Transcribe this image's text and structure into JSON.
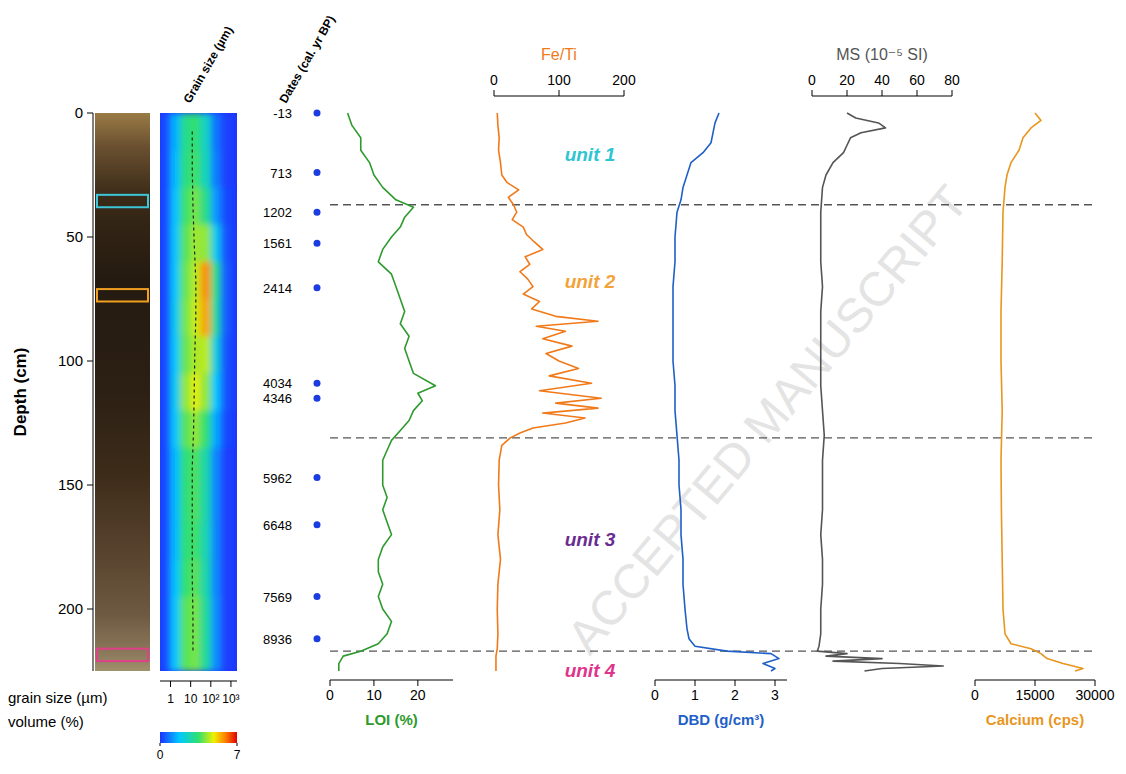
{
  "chart_data": {
    "type": "core_log",
    "ylabel": "Depth (cm)",
    "ylim": [
      0,
      225
    ],
    "yticks": [
      0,
      50,
      100,
      150,
      200
    ],
    "watermark": "ACCEPTED MANUSCRIPT",
    "boundaries": [
      37,
      131,
      217
    ],
    "units": [
      {
        "label": "unit 1",
        "depth": 17,
        "color": "#2ec5d3"
      },
      {
        "label": "unit 2",
        "depth": 68,
        "color": "#f2a33a"
      },
      {
        "label": "unit 3",
        "depth": 172,
        "color": "#6a2c91"
      },
      {
        "label": "unit 4",
        "depth": 225,
        "color": "#e0338a"
      }
    ],
    "core_samples": [
      {
        "top": 33,
        "bottom": 38,
        "color": "#3cc6d8"
      },
      {
        "top": 71,
        "bottom": 76,
        "color": "#f0a020"
      },
      {
        "top": 216,
        "bottom": 221,
        "color": "#e0408a"
      }
    ],
    "grain_size": {
      "title": "Grain size (µm)",
      "axis_label": "grain size (µm)",
      "colorbar_label": "volume (%)",
      "log": "x",
      "xlim": [
        0.3,
        2000
      ],
      "xticks": [
        1,
        10,
        {
          "value": 100,
          "label": "10²"
        },
        {
          "value": 1000,
          "label": "10³"
        }
      ],
      "bin_edges": [
        0.3,
        1,
        3,
        10,
        30,
        100,
        300,
        1000,
        2000
      ],
      "depth_edges": [
        0,
        15,
        30,
        45,
        60,
        75,
        90,
        105,
        120,
        135,
        150,
        165,
        180,
        195,
        210,
        225
      ],
      "cells": [
        [
          0.3,
          1.5,
          3.2,
          3.5,
          2.5,
          0.8,
          0.2,
          0.1
        ],
        [
          0.3,
          1.6,
          3.3,
          3.6,
          2.6,
          0.9,
          0.2,
          0.1
        ],
        [
          0.3,
          1.7,
          3.6,
          4.0,
          3.2,
          1.2,
          0.3,
          0.1
        ],
        [
          0.3,
          1.8,
          3.8,
          4.3,
          4.2,
          2.0,
          0.4,
          0.1
        ],
        [
          0.3,
          1.8,
          3.9,
          4.5,
          5.8,
          3.2,
          0.5,
          0.1
        ],
        [
          0.3,
          1.9,
          4.0,
          4.6,
          5.6,
          3.0,
          0.5,
          0.1
        ],
        [
          0.3,
          1.8,
          3.9,
          4.4,
          4.5,
          2.2,
          0.4,
          0.1
        ],
        [
          0.3,
          1.9,
          4.2,
          4.8,
          4.2,
          1.8,
          0.4,
          0.1
        ],
        [
          0.3,
          1.8,
          3.8,
          4.2,
          3.5,
          1.4,
          0.3,
          0.1
        ],
        [
          0.3,
          1.6,
          3.4,
          3.7,
          2.8,
          1.0,
          0.2,
          0.1
        ],
        [
          0.3,
          1.6,
          3.4,
          3.7,
          2.8,
          1.0,
          0.2,
          0.1
        ],
        [
          0.3,
          1.6,
          3.4,
          3.6,
          2.7,
          1.0,
          0.2,
          0.1
        ],
        [
          0.3,
          1.7,
          3.5,
          3.8,
          2.8,
          1.0,
          0.2,
          0.1
        ],
        [
          0.3,
          1.8,
          3.8,
          4.0,
          3.0,
          1.1,
          0.2,
          0.1
        ],
        [
          0.3,
          1.8,
          3.8,
          4.0,
          3.0,
          1.1,
          0.2,
          0.1
        ]
      ],
      "colorbar_range": [
        0,
        7
      ],
      "colorbar_ticks": [
        0,
        7
      ],
      "median_depth": [
        7.5,
        22.5,
        37.5,
        52.5,
        67.5,
        82.5,
        97.5,
        112.5,
        127.5,
        142.5,
        157.5,
        172.5,
        187.5,
        202.5,
        217.5
      ],
      "median": [
        12,
        12,
        13,
        15,
        18,
        18,
        16,
        15,
        14,
        12,
        12,
        12,
        12,
        13,
        13
      ]
    },
    "dates": {
      "title": "Dates (cal. yr BP)",
      "color": "#1a3ce0",
      "depth": [
        0,
        24,
        40,
        52.5,
        70.5,
        109,
        115,
        147,
        166,
        195,
        212
      ],
      "age": [
        -13,
        713,
        1202,
        1561,
        2414,
        4034,
        4346,
        5962,
        6648,
        7569,
        8936
      ]
    },
    "panels": [
      {
        "name": "LOI",
        "title": "LOI (%)",
        "color": "#2e9a2e",
        "xlim": [
          0,
          28
        ],
        "xticks": [
          0,
          10,
          20
        ],
        "depth": [
          0,
          5,
          10,
          15,
          20,
          25,
          30,
          35,
          38,
          42,
          46,
          50,
          55,
          60,
          65,
          70,
          75,
          80,
          85,
          90,
          95,
          100,
          105,
          110,
          113,
          116,
          120,
          124,
          128,
          132,
          136,
          140,
          145,
          150,
          155,
          160,
          165,
          170,
          175,
          180,
          185,
          190,
          195,
          200,
          205,
          210,
          214,
          217,
          219,
          222,
          225
        ],
        "values": [
          4,
          5,
          7,
          7,
          9,
          10,
          12,
          15,
          19,
          17,
          16,
          14,
          12,
          11,
          14,
          15,
          16,
          17,
          16,
          18,
          17,
          18,
          19,
          24,
          20,
          21,
          19,
          18,
          16,
          14,
          13,
          12,
          12,
          12,
          13,
          12,
          13,
          14,
          12,
          11,
          11,
          12,
          11,
          12,
          14,
          13,
          11,
          7,
          3,
          2,
          2
        ]
      },
      {
        "name": "Fe/Ti",
        "title": "Fe/Ti",
        "color": "#f07a1a",
        "xlim": [
          0,
          200
        ],
        "xticks": [
          0,
          100,
          200
        ],
        "depth": [
          0,
          5,
          10,
          15,
          20,
          25,
          28,
          31,
          34,
          37,
          40,
          43,
          46,
          49,
          52,
          55,
          58,
          61,
          64,
          67,
          70,
          73,
          76,
          79,
          82,
          84,
          86,
          88,
          91,
          94,
          97,
          100,
          103,
          106,
          109,
          112,
          115,
          117,
          119,
          121,
          123,
          125,
          127,
          129,
          131,
          134,
          140,
          150,
          160,
          170,
          180,
          190,
          200,
          210,
          216,
          219,
          225
        ],
        "values": [
          5,
          6,
          8,
          7,
          10,
          12,
          20,
          38,
          22,
          30,
          35,
          28,
          45,
          50,
          62,
          75,
          48,
          55,
          40,
          52,
          60,
          45,
          70,
          58,
          95,
          160,
          65,
          110,
          75,
          120,
          80,
          100,
          130,
          85,
          150,
          70,
          165,
          95,
          160,
          75,
          140,
          110,
          60,
          40,
          25,
          12,
          8,
          7,
          9,
          6,
          10,
          6,
          5,
          6,
          5,
          3,
          3
        ]
      },
      {
        "name": "DBD",
        "title": "DBD (g/cm³)",
        "color": "#1f5fc8",
        "xlim": [
          0,
          3.3
        ],
        "xticks": [
          0,
          1,
          2,
          3
        ],
        "depth": [
          0,
          4,
          8,
          12,
          16,
          20,
          25,
          30,
          35,
          40,
          50,
          60,
          70,
          80,
          90,
          100,
          110,
          120,
          130,
          140,
          150,
          160,
          170,
          180,
          190,
          200,
          208,
          212,
          215,
          217,
          218,
          220,
          222,
          224,
          225
        ],
        "values": [
          1.6,
          1.5,
          1.45,
          1.4,
          1.2,
          0.9,
          0.8,
          0.7,
          0.65,
          0.55,
          0.5,
          0.5,
          0.45,
          0.45,
          0.45,
          0.45,
          0.5,
          0.5,
          0.55,
          0.6,
          0.6,
          0.65,
          0.65,
          0.7,
          0.7,
          0.75,
          0.8,
          0.85,
          1.0,
          1.8,
          2.9,
          3.1,
          2.7,
          3.0,
          2.9
        ]
      },
      {
        "name": "MS",
        "title": "MS (10⁻⁵ SI)",
        "color": "#555555",
        "xlim": [
          0,
          80
        ],
        "xticks": [
          0,
          20,
          40,
          60,
          80
        ],
        "depth": [
          0,
          2,
          4,
          6,
          8,
          10,
          13,
          16,
          20,
          25,
          30,
          40,
          50,
          60,
          70,
          80,
          90,
          100,
          110,
          120,
          130,
          140,
          150,
          160,
          170,
          180,
          190,
          200,
          210,
          215,
          217,
          218,
          219,
          220,
          221,
          222,
          223,
          224,
          225
        ],
        "values": [
          20,
          25,
          38,
          42,
          28,
          22,
          20,
          18,
          12,
          8,
          6,
          5,
          5,
          5,
          6,
          5,
          5,
          5,
          5,
          6,
          7,
          6,
          6,
          6,
          5,
          6,
          6,
          5,
          5,
          4,
          3,
          20,
          8,
          40,
          12,
          50,
          75,
          40,
          30
        ]
      },
      {
        "name": "Calcium",
        "title": "Calcium (cps)",
        "color": "#e8961e",
        "xlim": [
          0,
          30000
        ],
        "xticks": [
          0,
          15000,
          30000
        ],
        "depth": [
          0,
          3,
          6,
          10,
          15,
          20,
          25,
          30,
          40,
          60,
          80,
          100,
          120,
          140,
          160,
          180,
          200,
          210,
          214,
          216,
          218,
          220,
          222,
          224,
          225
        ],
        "values": [
          15000,
          16500,
          14000,
          12000,
          11000,
          9000,
          8000,
          7500,
          7000,
          6800,
          6500,
          6500,
          6800,
          6500,
          6600,
          6800,
          7000,
          7500,
          9000,
          14000,
          16500,
          18000,
          22000,
          27000,
          25000
        ]
      }
    ]
  }
}
